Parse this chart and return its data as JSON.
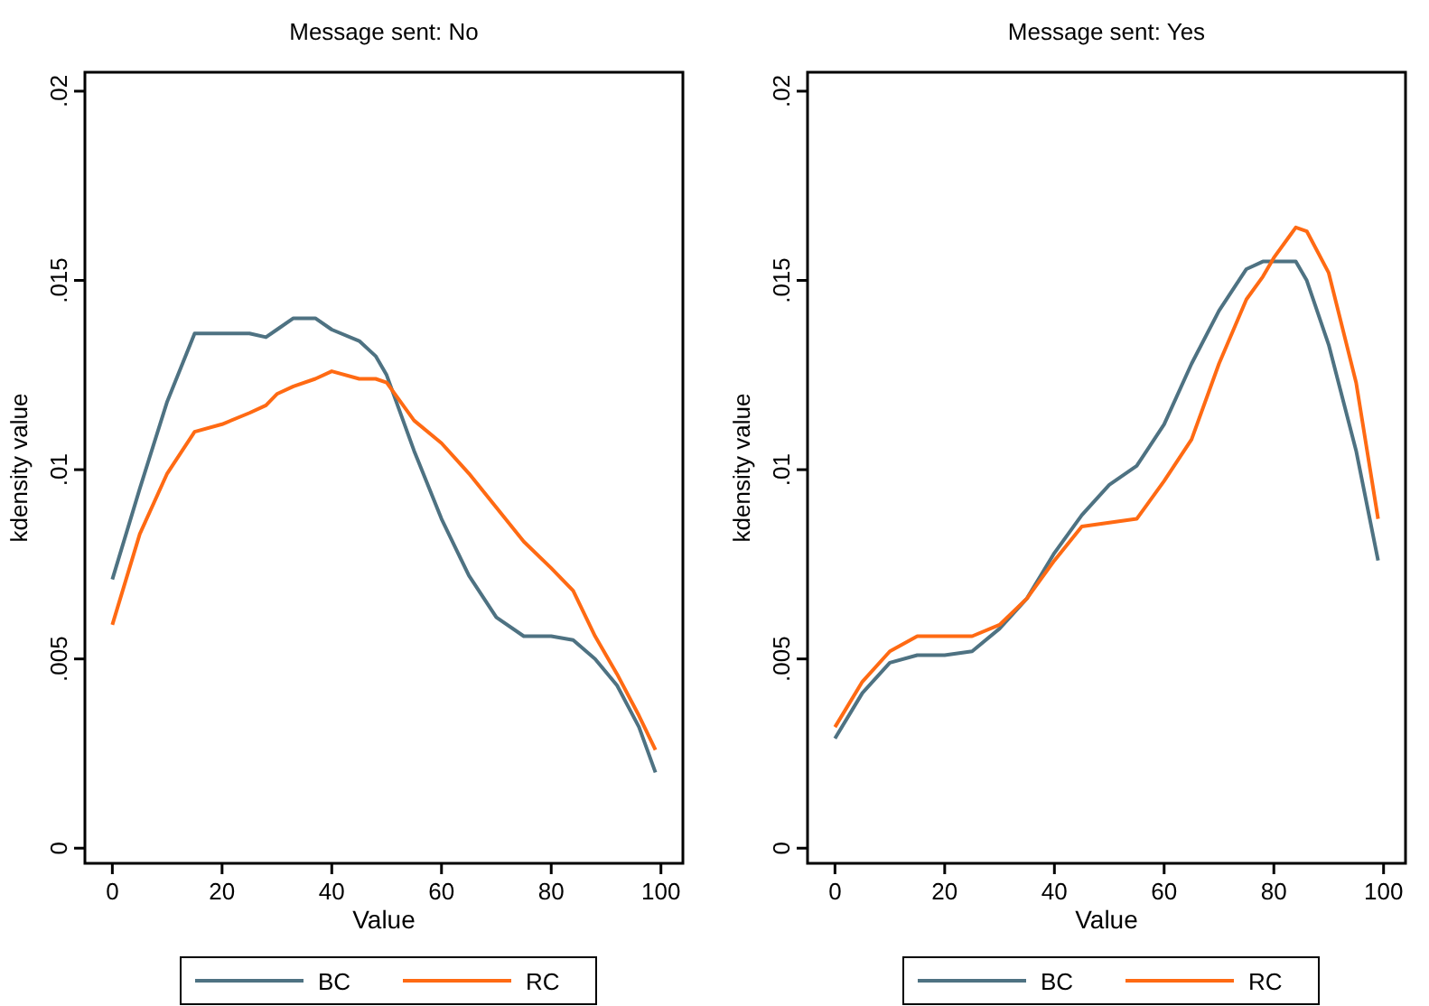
{
  "chart_data": [
    {
      "type": "line",
      "title": "Message sent: No",
      "xlabel": "Value",
      "ylabel": "kdensity value",
      "legend": "bottom",
      "xlim": [
        -5,
        104
      ],
      "ylim": [
        -0.0004,
        0.0205
      ],
      "xticks": [
        0,
        20,
        40,
        60,
        80,
        100
      ],
      "yticks": [
        {
          "value": 0,
          "label": "0"
        },
        {
          "value": 0.005,
          "label": ".005"
        },
        {
          "value": 0.01,
          "label": ".01"
        },
        {
          "value": 0.015,
          "label": ".015"
        },
        {
          "value": 0.02,
          "label": ".02"
        }
      ],
      "x": [
        0,
        5,
        10,
        15,
        20,
        25,
        28,
        30,
        33,
        37,
        40,
        45,
        48,
        50,
        55,
        60,
        65,
        70,
        75,
        80,
        84,
        88,
        92,
        96,
        99
      ],
      "series": [
        {
          "name": "BC",
          "color": "#4e7282",
          "values": [
            0.0071,
            0.0095,
            0.0118,
            0.0136,
            0.0136,
            0.0136,
            0.0135,
            0.0137,
            0.014,
            0.014,
            0.0137,
            0.0134,
            0.013,
            0.0125,
            0.0105,
            0.0087,
            0.0072,
            0.0061,
            0.0056,
            0.0056,
            0.0055,
            0.005,
            0.0043,
            0.0032,
            0.002
          ]
        },
        {
          "name": "RC",
          "color": "#ff6a13",
          "values": [
            0.0059,
            0.0083,
            0.0099,
            0.011,
            0.0112,
            0.0115,
            0.0117,
            0.012,
            0.0122,
            0.0124,
            0.0126,
            0.0124,
            0.0124,
            0.0123,
            0.0113,
            0.0107,
            0.0099,
            0.009,
            0.0081,
            0.0074,
            0.0068,
            0.0056,
            0.0046,
            0.0035,
            0.0026
          ]
        }
      ]
    },
    {
      "type": "line",
      "title": "Message sent: Yes",
      "xlabel": "Value",
      "ylabel": "kdensity value",
      "legend": "bottom",
      "xlim": [
        -5,
        104
      ],
      "ylim": [
        -0.0004,
        0.0205
      ],
      "xticks": [
        0,
        20,
        40,
        60,
        80,
        100
      ],
      "yticks": [
        {
          "value": 0,
          "label": "0"
        },
        {
          "value": 0.005,
          "label": ".005"
        },
        {
          "value": 0.01,
          "label": ".01"
        },
        {
          "value": 0.015,
          "label": ".015"
        },
        {
          "value": 0.02,
          "label": ".02"
        }
      ],
      "x": [
        0,
        5,
        10,
        15,
        20,
        25,
        30,
        35,
        40,
        45,
        50,
        55,
        60,
        65,
        70,
        75,
        78,
        80,
        83,
        84,
        86,
        90,
        95,
        99
      ],
      "series": [
        {
          "name": "BC",
          "color": "#4e7282",
          "values": [
            0.0029,
            0.0041,
            0.0049,
            0.0051,
            0.0051,
            0.0052,
            0.0058,
            0.0066,
            0.0078,
            0.0088,
            0.0096,
            0.0101,
            0.0112,
            0.0128,
            0.0142,
            0.0153,
            0.0155,
            0.0155,
            0.0155,
            0.0155,
            0.015,
            0.0133,
            0.0105,
            0.0076
          ]
        },
        {
          "name": "RC",
          "color": "#ff6a13",
          "values": [
            0.0032,
            0.0044,
            0.0052,
            0.0056,
            0.0056,
            0.0056,
            0.0059,
            0.0066,
            0.0076,
            0.0085,
            0.0086,
            0.0087,
            0.0097,
            0.0108,
            0.0128,
            0.0145,
            0.0151,
            0.0156,
            0.0162,
            0.0164,
            0.0163,
            0.0152,
            0.0123,
            0.0087
          ]
        }
      ]
    }
  ]
}
